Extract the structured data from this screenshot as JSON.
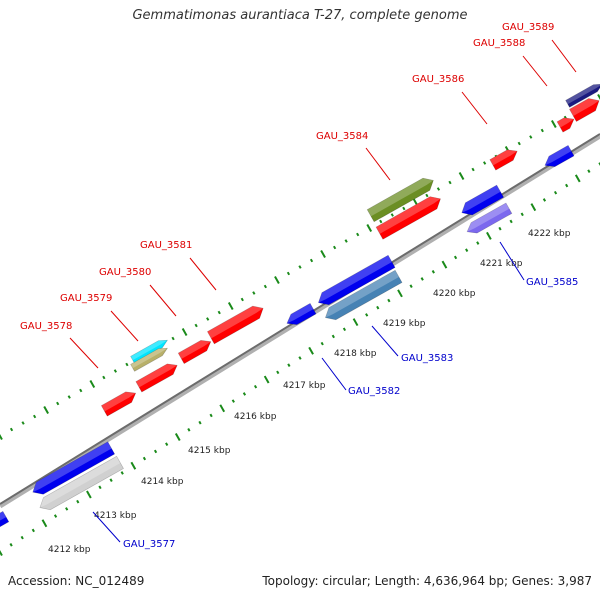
{
  "header": {
    "title": "Gemmatimonas aurantiaca T-27, complete genome"
  },
  "footer": {
    "accession": "Accession: NC_012489",
    "summary": "Topology: circular; Length: 4,636,964 bp; Genes: 3,987"
  },
  "colors": {
    "backbone": "#8c8c8c",
    "ticks": "#1a8a1a",
    "plus_gene": "#ff0000",
    "minus_gene": "#0000ee",
    "plus_label": "#dd0000",
    "minus_label": "#0000cc"
  },
  "scale": {
    "kbp_labels": [
      "4212 kbp",
      "4213 kbp",
      "4214 kbp",
      "4215 kbp",
      "4216 kbp",
      "4217 kbp",
      "4218 kbp",
      "4219 kbp",
      "4220 kbp",
      "4221 kbp",
      "4222 kbp"
    ]
  },
  "features_plus": [
    {
      "label": "GAU_3578",
      "color": "#ff0000"
    },
    {
      "label": "GAU_3579",
      "color": "#00e5ff"
    },
    {
      "label": "GAU_3580",
      "color": "#ff0000"
    },
    {
      "label": "GAU_3581",
      "color": "#ff0000"
    },
    {
      "label": "GAU_3584",
      "color": "#6b8e23"
    },
    {
      "label": "GAU_3586",
      "color": "#ff0000"
    },
    {
      "label": "GAU_3588",
      "color": "#ff0000"
    },
    {
      "label": "GAU_3589",
      "color": "#1a1a80"
    }
  ],
  "features_minus": [
    {
      "label": "GAU_3577",
      "color": "#d0d0d0"
    },
    {
      "label": "GAU_3582",
      "color": "#0000ee"
    },
    {
      "label": "GAU_3583",
      "color": "#4682b4"
    },
    {
      "label": "GAU_3585",
      "color": "#7b68ee"
    }
  ]
}
